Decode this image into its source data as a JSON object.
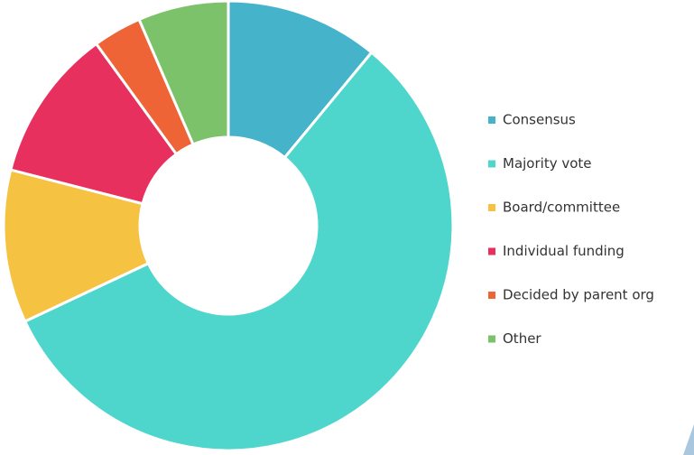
{
  "chart_data": {
    "type": "donut",
    "categories": [
      "Consensus",
      "Majority vote",
      "Board/committee",
      "Individual funding",
      "Decided by parent org",
      "Other"
    ],
    "values": [
      11,
      57,
      11,
      11,
      3.5,
      6.5
    ],
    "colors": [
      "#45b3c9",
      "#4fd6cc",
      "#f6c242",
      "#e8305f",
      "#ef6436",
      "#7cc26a"
    ],
    "legend": "right"
  }
}
